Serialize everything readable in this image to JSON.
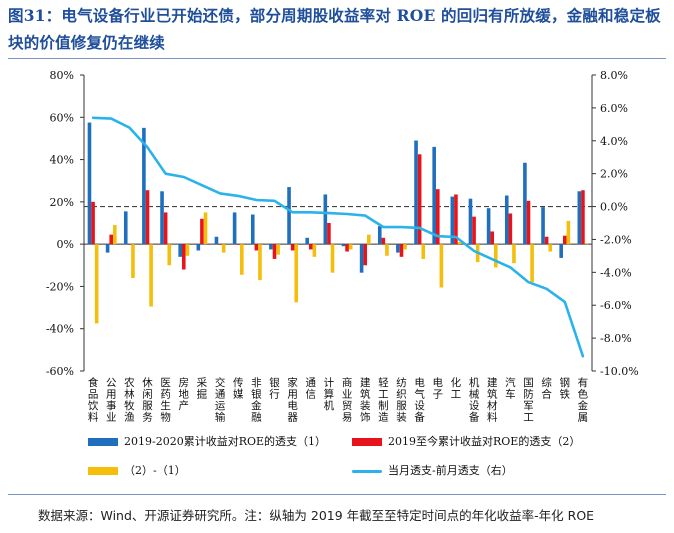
{
  "figure": {
    "title": "图31：电气设备行业已开始还债，部分周期股收益率对 ROE 的回归有所放缓，金融和稳定板块的价值修复仍在继续",
    "source": "数据来源：Wind、开源证券研究所。注：纵轴为 2019 年截至至特定时间点的年化收益率-年化 ROE"
  },
  "chart_data": {
    "type": "bar",
    "categories": [
      "食品饮料",
      "公用事业",
      "农林牧渔",
      "休闲服务",
      "医药生物",
      "房地产",
      "采掘",
      "交通运输",
      "传媒",
      "非银金融",
      "银行",
      "家用电器",
      "通信",
      "计算机",
      "商业贸易",
      "建筑装饰",
      "轻工制造",
      "纺织服装",
      "电气设备",
      "电子",
      "化工",
      "机械设备",
      "建筑材料",
      "汽车",
      "国防军工",
      "综合",
      "钢铁",
      "有色金属"
    ],
    "series": [
      {
        "name": "2019-2020累计收益对ROE的透支（1）",
        "axis": "left",
        "color": "#1f6fbd",
        "values": [
          57.5,
          -4,
          15.5,
          55,
          25,
          -6,
          -3,
          3.5,
          15,
          14,
          -2.5,
          27,
          3,
          23.5,
          -1,
          -13.5,
          8.5,
          -4,
          49,
          46,
          22.5,
          21.5,
          17,
          23,
          38.5,
          17.5,
          -6.5,
          25
        ]
      },
      {
        "name": "2019至今累计收益对ROE的透支（2）",
        "axis": "left",
        "color": "#e8141c",
        "values": [
          20,
          4.5,
          0,
          25.5,
          15,
          -12,
          12,
          0,
          0,
          -3,
          -7,
          -3,
          -2.5,
          10,
          -3.5,
          -10,
          3,
          -6,
          42.5,
          26,
          23.5,
          13,
          6,
          14.5,
          20.5,
          3.5,
          4,
          25.5
        ]
      },
      {
        "name": "（2）-（1）",
        "axis": "left",
        "color": "#f5be0b",
        "values": [
          -37.5,
          9,
          -16,
          -29.5,
          -10,
          -5.5,
          15,
          -4,
          -14.5,
          -17,
          -5,
          -27.5,
          -6,
          -13.5,
          -2.5,
          4.5,
          -5.5,
          -2.5,
          -7,
          -20.5,
          1,
          -8.5,
          -11,
          -9,
          -18,
          -3.5,
          11,
          0.5
        ]
      },
      {
        "name": "当月透支-前月透支（右）",
        "axis": "right",
        "type": "line",
        "color": "#29b3ea",
        "values": [
          5.4,
          5.35,
          4.8,
          3.6,
          2.0,
          1.8,
          1.3,
          0.8,
          0.65,
          0.4,
          0.35,
          -0.35,
          -0.35,
          -0.4,
          -0.45,
          -0.55,
          -1.25,
          -1.25,
          -1.3,
          -1.8,
          -1.85,
          -2.7,
          -3.2,
          -3.7,
          -4.6,
          -5.0,
          -5.8,
          -9.1
        ]
      }
    ],
    "left_axis": {
      "ylim": [
        -60,
        80
      ],
      "ticks": [
        -60,
        -40,
        -20,
        0,
        20,
        40,
        60,
        80
      ],
      "tick_labels": [
        "-60%",
        "-40%",
        "-20%",
        "0%",
        "20%",
        "40%",
        "60%",
        "80%"
      ]
    },
    "right_axis": {
      "ylim": [
        -10,
        8
      ],
      "ticks": [
        -10,
        -8,
        -6,
        -4,
        -2,
        0,
        2,
        4,
        6,
        8
      ],
      "tick_labels": [
        "-10.0%",
        "-8.0%",
        "-6.0%",
        "-4.0%",
        "-2.0%",
        "0.0%",
        "2.0%",
        "4.0%",
        "6.0%",
        "8.0%"
      ],
      "reference_line": 0
    },
    "grid": false,
    "legend_position": "bottom"
  }
}
